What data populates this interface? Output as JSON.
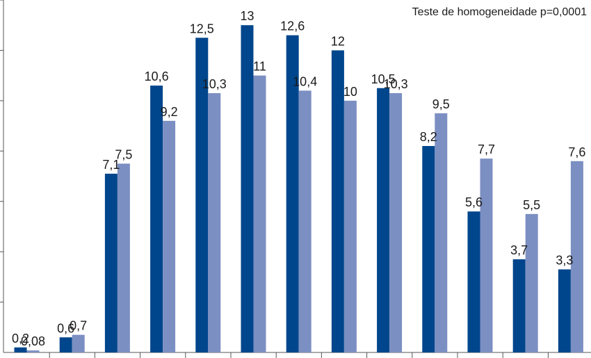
{
  "chart_data": {
    "type": "bar",
    "title": "",
    "xlabel": "",
    "ylabel": "",
    "annotation": "Teste de homogeneidade p=0,0001",
    "ylim": [
      0,
      14
    ],
    "grid": false,
    "colors": [
      "#00468c",
      "#7b8fc2"
    ],
    "series": [
      {
        "values": [
          0.2,
          0.6,
          7.1,
          10.6,
          12.5,
          13,
          12.6,
          12,
          10.5,
          8.2,
          5.6,
          3.7,
          3.3
        ],
        "labels": [
          "0,2",
          "0,6",
          "7,1",
          "10,6",
          "12,5",
          "13",
          "12,6",
          "12",
          "10,5",
          "8,2",
          "5,6",
          "3,7",
          "3,3"
        ]
      },
      {
        "values": [
          0.08,
          0.7,
          7.5,
          9.2,
          10.3,
          11,
          10.4,
          10,
          10.3,
          9.5,
          7.7,
          5.5,
          7.6
        ],
        "labels": [
          "0,08",
          "0,7",
          "7,5",
          "9,2",
          "10,3",
          "11",
          "10,4",
          "10",
          "10,3",
          "9,5",
          "7,7",
          "5,5",
          "7,6"
        ]
      }
    ]
  }
}
